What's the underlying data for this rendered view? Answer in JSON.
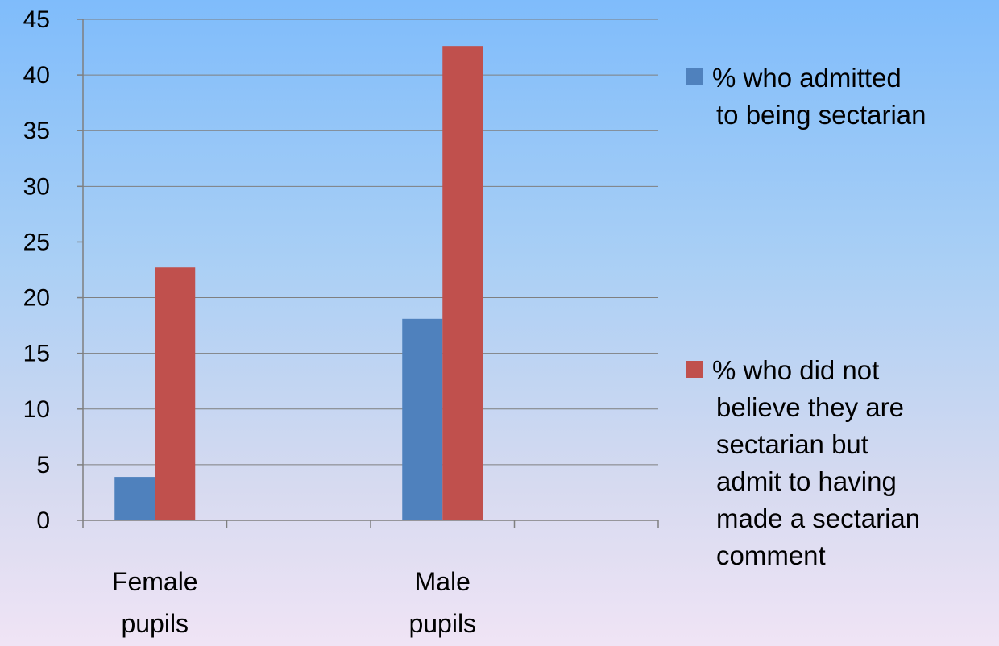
{
  "chart_data": {
    "type": "bar",
    "categories": [
      [
        "Female",
        "pupils"
      ],
      [
        "Male",
        "pupils"
      ]
    ],
    "ylim": [
      0,
      45
    ],
    "yticks": [
      0,
      5,
      10,
      15,
      20,
      25,
      30,
      35,
      40,
      45
    ],
    "grid": true,
    "legend_position": "right",
    "series": [
      {
        "name": [
          "% who admitted",
          "to being sectarian"
        ],
        "color": "#4f81bd",
        "values": [
          3.9,
          18.1
        ]
      },
      {
        "name": [
          "% who did not",
          "believe they are",
          "sectarian but",
          "admit to having",
          "made a sectarian",
          "comment"
        ],
        "color": "#c0504d",
        "values": [
          22.7,
          42.6
        ]
      }
    ]
  }
}
